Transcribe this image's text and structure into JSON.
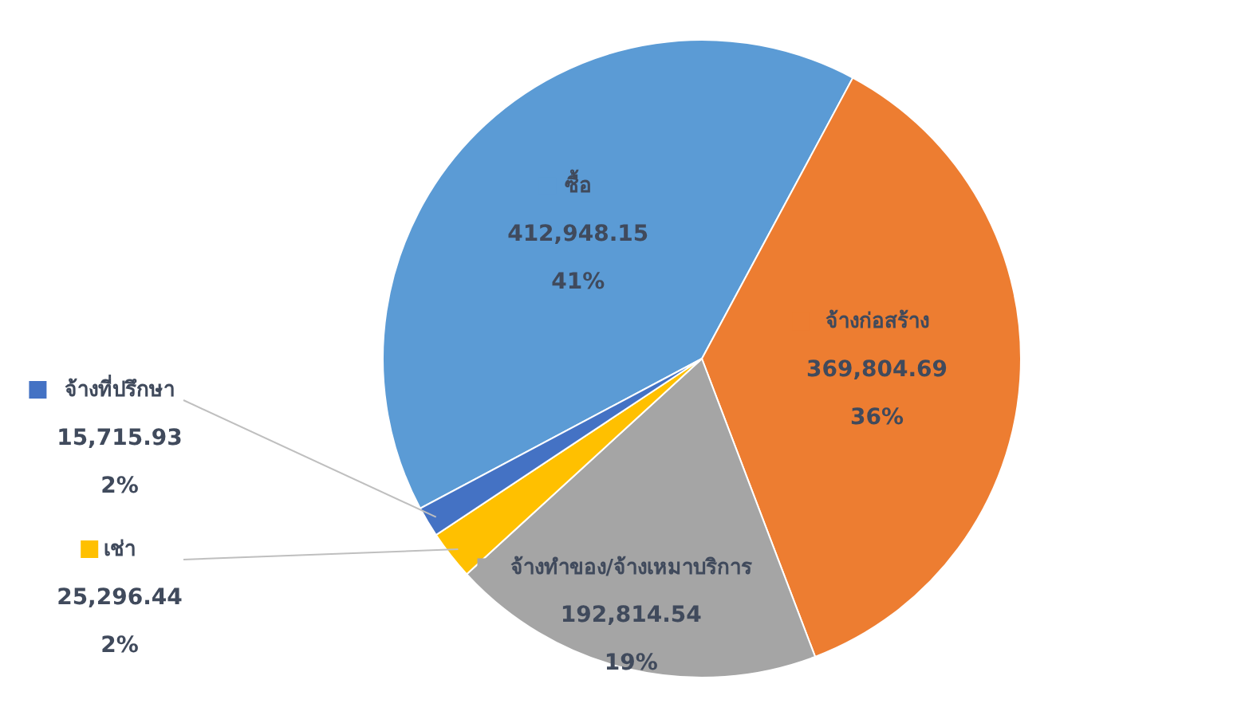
{
  "chart_data": {
    "type": "pie",
    "categories": [
      "ซื้อ",
      "จ้างก่อสร้าง",
      "จ้างทำของ/จ้างเหมาบริการ",
      "เช่า",
      "จ้างที่ปรึกษา"
    ],
    "values": [
      412948.15,
      369804.69,
      192814.54,
      25296.44,
      15715.93
    ],
    "value_labels": [
      "412,948.15\n41%",
      "369,804.69\n36%",
      "192,814.54\n19%",
      "25,296.44\n2%",
      "15,715.93\n2%"
    ],
    "colors": [
      "#5b9bd5",
      "#ed7d31",
      "#a5a5a5",
      "#ffc000",
      "#4472c4"
    ],
    "legend": "left"
  }
}
